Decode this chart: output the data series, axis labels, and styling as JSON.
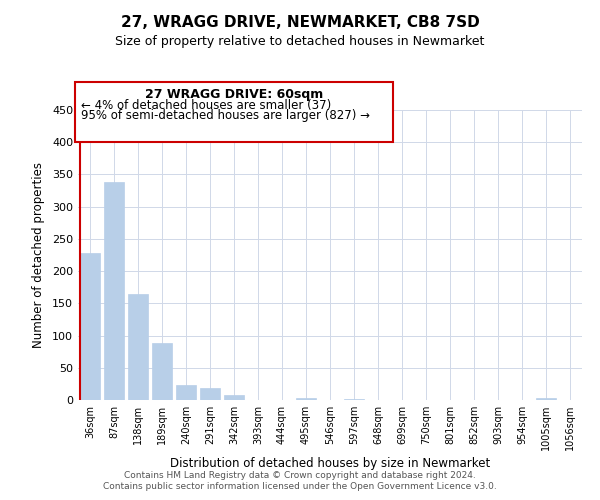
{
  "title": "27, WRAGG DRIVE, NEWMARKET, CB8 7SD",
  "subtitle": "Size of property relative to detached houses in Newmarket",
  "xlabel": "Distribution of detached houses by size in Newmarket",
  "ylabel": "Number of detached properties",
  "categories": [
    "36sqm",
    "87sqm",
    "138sqm",
    "189sqm",
    "240sqm",
    "291sqm",
    "342sqm",
    "393sqm",
    "444sqm",
    "495sqm",
    "546sqm",
    "597sqm",
    "648sqm",
    "699sqm",
    "750sqm",
    "801sqm",
    "852sqm",
    "903sqm",
    "954sqm",
    "1005sqm",
    "1056sqm"
  ],
  "values": [
    228,
    338,
    165,
    89,
    23,
    18,
    7,
    0,
    0,
    3,
    0,
    2,
    0,
    0,
    0,
    0,
    0,
    0,
    0,
    3,
    0
  ],
  "bar_color": "#b8cfe8",
  "annotation_text_line1": "27 WRAGG DRIVE: 60sqm",
  "annotation_text_line2": "← 4% of detached houses are smaller (37)",
  "annotation_text_line3": "95% of semi-detached houses are larger (827) →",
  "annotation_box_color": "#ffffff",
  "annotation_box_edgecolor": "#cc0000",
  "marker_line_color": "#cc0000",
  "ylim": [
    0,
    450
  ],
  "yticks": [
    0,
    50,
    100,
    150,
    200,
    250,
    300,
    350,
    400,
    450
  ],
  "footer_line1": "Contains HM Land Registry data © Crown copyright and database right 2024.",
  "footer_line2": "Contains public sector information licensed under the Open Government Licence v3.0.",
  "background_color": "#ffffff",
  "grid_color": "#d0d8e8"
}
